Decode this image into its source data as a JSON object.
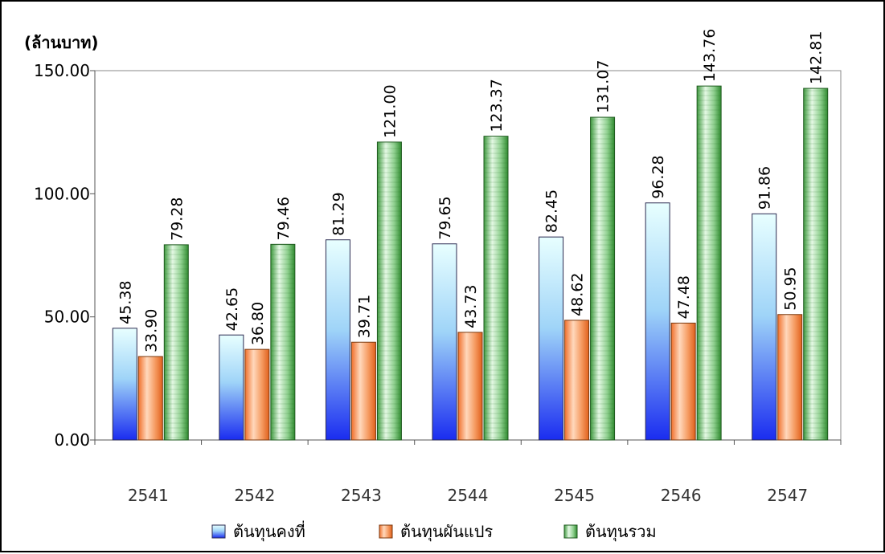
{
  "chart_data": {
    "type": "bar",
    "title": "",
    "ylabel": "(ล้านบาท)",
    "xlabel": "",
    "categories": [
      "2541",
      "2542",
      "2543",
      "2544",
      "2545",
      "2546",
      "2547"
    ],
    "ylim": [
      0,
      150
    ],
    "yticks": [
      "0.00",
      "50.00",
      "100.00",
      "150.00"
    ],
    "ytick_values": [
      0,
      50,
      100,
      150
    ],
    "grid": false,
    "legend_position": "bottom",
    "series": [
      {
        "name": "ต้นทุนคงที่",
        "values": [
          45.38,
          42.65,
          81.29,
          79.65,
          82.45,
          96.28,
          91.86
        ],
        "labels": [
          "45.38",
          "42.65",
          "81.29",
          "79.65",
          "82.45",
          "96.28",
          "91.86"
        ],
        "color_top": "#e8ffff",
        "color_bottom": "#1a2cf0"
      },
      {
        "name": "ต้นทุนผันแปร",
        "values": [
          33.9,
          36.8,
          39.71,
          43.73,
          48.62,
          47.48,
          50.95
        ],
        "labels": [
          "33.90",
          "36.80",
          "39.71",
          "43.73",
          "48.62",
          "47.48",
          "50.95"
        ],
        "color_light": "#ffd8bc",
        "color_dark": "#f0702c"
      },
      {
        "name": "ต้นทุนรวม",
        "values": [
          79.28,
          79.46,
          121.0,
          123.37,
          131.07,
          143.76,
          142.81
        ],
        "labels": [
          "79.28",
          "79.46",
          "121.00",
          "123.37",
          "131.07",
          "143.76",
          "142.81"
        ],
        "color_light": "#e4f8e4",
        "color_dark": "#3f9a3f"
      }
    ]
  }
}
